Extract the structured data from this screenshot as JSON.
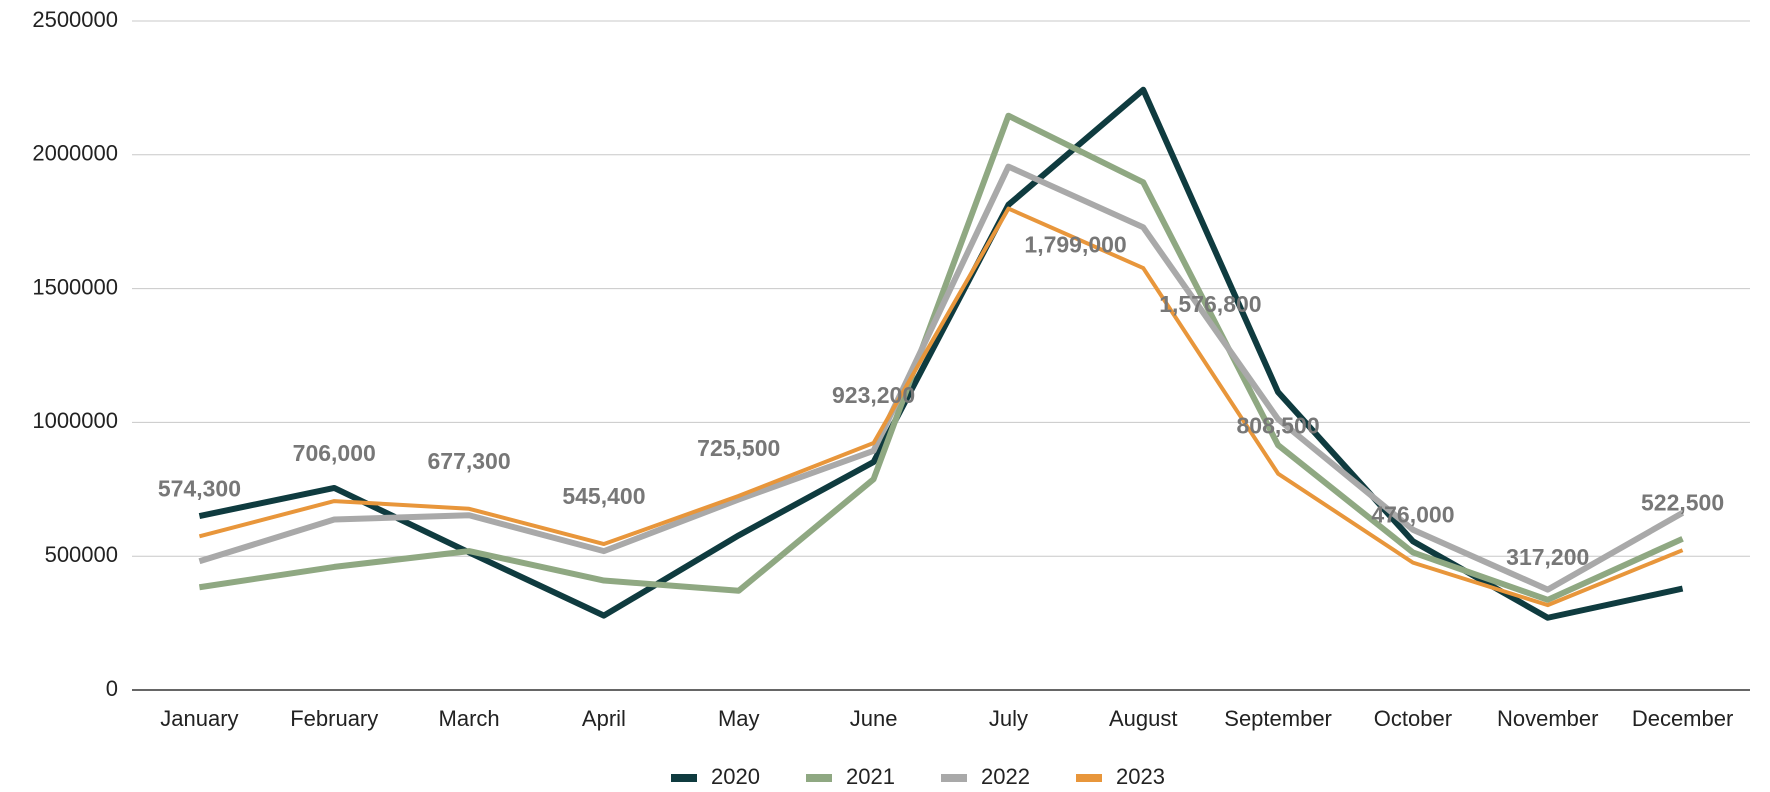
{
  "chart_data": {
    "type": "line",
    "categories": [
      "January",
      "February",
      "March",
      "April",
      "May",
      "June",
      "July",
      "August",
      "September",
      "October",
      "November",
      "December"
    ],
    "series": [
      {
        "name": "2020",
        "color": "#0f3b3f",
        "values": [
          650000,
          755000,
          514000,
          278000,
          578000,
          852000,
          1813000,
          2243000,
          1113000,
          556000,
          270000,
          379000
        ]
      },
      {
        "name": "2021",
        "color": "#8fa882",
        "values": [
          384000,
          460000,
          519000,
          409000,
          371000,
          788000,
          2146000,
          1897000,
          915000,
          514000,
          337000,
          565000
        ]
      },
      {
        "name": "2022",
        "color": "#a9a9a9",
        "values": [
          481000,
          637000,
          653000,
          519000,
          712000,
          894000,
          1956000,
          1729000,
          1012000,
          599000,
          375000,
          662000
        ]
      },
      {
        "name": "2023",
        "color": "#e8963b",
        "values": [
          574300,
          706000,
          677300,
          545400,
          725500,
          923200,
          1799000,
          1576800,
          808500,
          476000,
          317200,
          522500
        ],
        "value_labels": [
          "574,300",
          "706,000",
          "677,300",
          "545,400",
          "725,500",
          "923,200",
          "1,799,000",
          "1,576,800",
          "808,500",
          "476,000",
          "317,200",
          "522,500"
        ]
      }
    ],
    "ylim": [
      0,
      2500000
    ],
    "yticks": [
      0,
      500000,
      1000000,
      1500000,
      2000000,
      2500000
    ],
    "grid": true,
    "legend": "bottom"
  }
}
